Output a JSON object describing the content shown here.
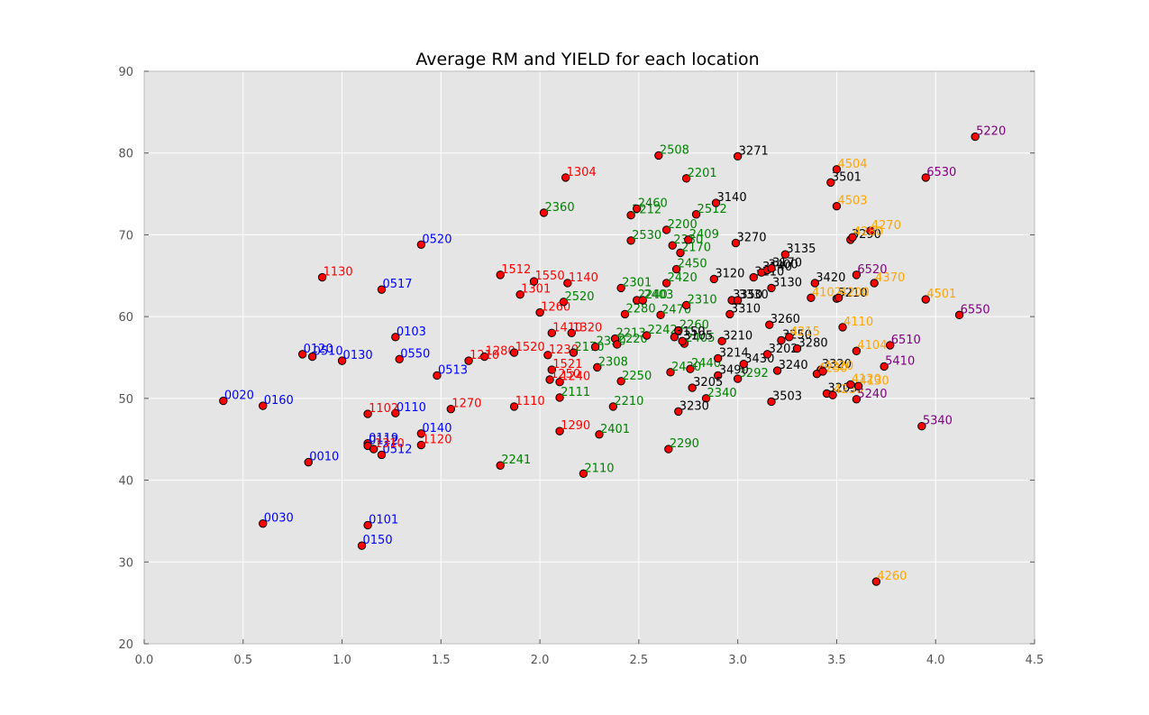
{
  "chart_data": {
    "type": "scatter",
    "title": "Average RM and YIELD for each location",
    "xlabel": "",
    "ylabel": "",
    "xlim": [
      0.0,
      4.5
    ],
    "ylim": [
      20,
      90
    ],
    "x_ticks": [
      "0.0",
      "0.5",
      "1.0",
      "1.5",
      "2.0",
      "2.5",
      "3.0",
      "3.5",
      "4.0",
      "4.5"
    ],
    "y_ticks": [
      "20",
      "30",
      "40",
      "50",
      "60",
      "70",
      "80",
      "90"
    ],
    "grid": true,
    "colors": {
      "background": "#e5e5e5",
      "grid": "#ffffff",
      "marker_fill": "#ff0000",
      "marker_edge": "#000000",
      "group_0": "#0000ff",
      "group_1": "#ff0000",
      "group_2": "#008000",
      "group_3": "#000000",
      "group_4": "#ffa500",
      "group_5": "#800080"
    },
    "points": [
      {
        "label": "0020",
        "x": 0.4,
        "y": 49.7,
        "group": 0
      },
      {
        "label": "0160",
        "x": 0.6,
        "y": 49.1,
        "group": 0
      },
      {
        "label": "0030",
        "x": 0.6,
        "y": 34.7,
        "group": 0
      },
      {
        "label": "0120",
        "x": 0.8,
        "y": 55.4,
        "group": 0
      },
      {
        "label": "0510",
        "x": 0.85,
        "y": 55.1,
        "group": 0
      },
      {
        "label": "0010",
        "x": 0.83,
        "y": 42.2,
        "group": 0
      },
      {
        "label": "0130",
        "x": 1.0,
        "y": 54.6,
        "group": 0
      },
      {
        "label": "0150",
        "x": 1.1,
        "y": 32.0,
        "group": 0
      },
      {
        "label": "0101",
        "x": 1.13,
        "y": 34.5,
        "group": 0
      },
      {
        "label": "0119",
        "x": 1.13,
        "y": 44.5,
        "group": 0
      },
      {
        "label": "0112",
        "x": 1.13,
        "y": 44.2,
        "group": 0
      },
      {
        "label": "0512",
        "x": 1.2,
        "y": 43.1,
        "group": 0
      },
      {
        "label": "0517",
        "x": 1.2,
        "y": 63.3,
        "group": 0
      },
      {
        "label": "0103",
        "x": 1.27,
        "y": 57.5,
        "group": 0
      },
      {
        "label": "0110",
        "x": 1.27,
        "y": 48.2,
        "group": 0
      },
      {
        "label": "0550",
        "x": 1.29,
        "y": 54.8,
        "group": 0
      },
      {
        "label": "0520",
        "x": 1.4,
        "y": 68.8,
        "group": 0
      },
      {
        "label": "0140",
        "x": 1.4,
        "y": 45.7,
        "group": 0
      },
      {
        "label": "0513",
        "x": 1.48,
        "y": 52.8,
        "group": 0
      },
      {
        "label": "1130",
        "x": 0.9,
        "y": 64.8,
        "group": 1
      },
      {
        "label": "1102",
        "x": 1.13,
        "y": 48.1,
        "group": 1
      },
      {
        "label": "1310",
        "x": 1.16,
        "y": 43.8,
        "group": 1
      },
      {
        "label": "1120",
        "x": 1.4,
        "y": 44.3,
        "group": 1
      },
      {
        "label": "1270",
        "x": 1.55,
        "y": 48.7,
        "group": 1
      },
      {
        "label": "1210",
        "x": 1.64,
        "y": 54.6,
        "group": 1
      },
      {
        "label": "1280",
        "x": 1.72,
        "y": 55.1,
        "group": 1
      },
      {
        "label": "1512",
        "x": 1.8,
        "y": 65.1,
        "group": 1
      },
      {
        "label": "1520",
        "x": 1.87,
        "y": 55.6,
        "group": 1
      },
      {
        "label": "1110",
        "x": 1.87,
        "y": 49.0,
        "group": 1
      },
      {
        "label": "1301",
        "x": 1.9,
        "y": 62.7,
        "group": 1
      },
      {
        "label": "1550",
        "x": 1.97,
        "y": 64.3,
        "group": 1
      },
      {
        "label": "1260",
        "x": 2.0,
        "y": 60.5,
        "group": 1
      },
      {
        "label": "1410",
        "x": 2.06,
        "y": 58.0,
        "group": 1
      },
      {
        "label": "1230",
        "x": 2.04,
        "y": 55.3,
        "group": 1
      },
      {
        "label": "1521",
        "x": 2.06,
        "y": 53.5,
        "group": 1
      },
      {
        "label": "1250",
        "x": 2.05,
        "y": 52.3,
        "group": 1
      },
      {
        "label": "1240",
        "x": 2.1,
        "y": 52.0,
        "group": 1
      },
      {
        "label": "1290",
        "x": 2.1,
        "y": 46.0,
        "group": 1
      },
      {
        "label": "1304",
        "x": 2.13,
        "y": 77.0,
        "group": 1
      },
      {
        "label": "1140",
        "x": 2.14,
        "y": 64.1,
        "group": 1
      },
      {
        "label": "1320",
        "x": 2.16,
        "y": 58.0,
        "group": 1
      },
      {
        "label": "2360",
        "x": 2.02,
        "y": 72.7,
        "group": 2
      },
      {
        "label": "2520",
        "x": 2.12,
        "y": 61.8,
        "group": 2
      },
      {
        "label": "2170",
        "x": 2.17,
        "y": 55.6,
        "group": 2
      },
      {
        "label": "2111",
        "x": 2.1,
        "y": 50.1,
        "group": 2
      },
      {
        "label": "2241",
        "x": 1.8,
        "y": 41.8,
        "group": 2
      },
      {
        "label": "2110",
        "x": 2.22,
        "y": 40.8,
        "group": 2
      },
      {
        "label": "2330",
        "x": 2.28,
        "y": 56.3,
        "group": 2
      },
      {
        "label": "2308",
        "x": 2.29,
        "y": 53.8,
        "group": 2
      },
      {
        "label": "2401",
        "x": 2.3,
        "y": 45.6,
        "group": 2
      },
      {
        "label": "2213",
        "x": 2.38,
        "y": 57.3,
        "group": 2
      },
      {
        "label": "2220",
        "x": 2.39,
        "y": 56.6,
        "group": 2
      },
      {
        "label": "2210",
        "x": 2.37,
        "y": 49.0,
        "group": 2
      },
      {
        "label": "2250",
        "x": 2.41,
        "y": 52.1,
        "group": 2
      },
      {
        "label": "2301",
        "x": 2.41,
        "y": 63.5,
        "group": 2
      },
      {
        "label": "2280",
        "x": 2.43,
        "y": 60.3,
        "group": 2
      },
      {
        "label": "2212",
        "x": 2.46,
        "y": 72.4,
        "group": 2
      },
      {
        "label": "2460",
        "x": 2.49,
        "y": 73.2,
        "group": 2
      },
      {
        "label": "2530",
        "x": 2.46,
        "y": 69.3,
        "group": 2
      },
      {
        "label": "2240",
        "x": 2.49,
        "y": 62.0,
        "group": 2
      },
      {
        "label": "2403",
        "x": 2.52,
        "y": 62.0,
        "group": 2
      },
      {
        "label": "2242",
        "x": 2.54,
        "y": 57.7,
        "group": 2
      },
      {
        "label": "2508",
        "x": 2.6,
        "y": 79.7,
        "group": 2
      },
      {
        "label": "2470",
        "x": 2.61,
        "y": 60.2,
        "group": 2
      },
      {
        "label": "2200",
        "x": 2.64,
        "y": 70.6,
        "group": 2
      },
      {
        "label": "2420",
        "x": 2.64,
        "y": 64.1,
        "group": 2
      },
      {
        "label": "2330",
        "x": 2.67,
        "y": 68.7,
        "group": 2
      },
      {
        "label": "2450",
        "x": 2.69,
        "y": 65.8,
        "group": 2
      },
      {
        "label": "2260",
        "x": 2.7,
        "y": 58.3,
        "group": 2
      },
      {
        "label": "2405",
        "x": 2.73,
        "y": 56.7,
        "group": 2
      },
      {
        "label": "2430",
        "x": 2.66,
        "y": 53.2,
        "group": 2
      },
      {
        "label": "2290",
        "x": 2.65,
        "y": 43.8,
        "group": 2
      },
      {
        "label": "2170",
        "x": 2.71,
        "y": 67.8,
        "group": 2
      },
      {
        "label": "2409",
        "x": 2.75,
        "y": 69.4,
        "group": 2
      },
      {
        "label": "2201",
        "x": 2.74,
        "y": 76.9,
        "group": 2
      },
      {
        "label": "2310",
        "x": 2.74,
        "y": 61.4,
        "group": 2
      },
      {
        "label": "2440",
        "x": 2.76,
        "y": 53.6,
        "group": 2
      },
      {
        "label": "2512",
        "x": 2.79,
        "y": 72.5,
        "group": 2
      },
      {
        "label": "2340",
        "x": 2.84,
        "y": 50.0,
        "group": 2
      },
      {
        "label": "3292",
        "x": 3.0,
        "y": 52.4,
        "group": 2
      },
      {
        "label": "3271",
        "x": 3.0,
        "y": 79.6,
        "group": 3
      },
      {
        "label": "3140",
        "x": 2.89,
        "y": 73.9,
        "group": 3
      },
      {
        "label": "3270",
        "x": 2.99,
        "y": 69.0,
        "group": 3
      },
      {
        "label": "3120",
        "x": 2.88,
        "y": 64.6,
        "group": 3
      },
      {
        "label": "3150",
        "x": 2.68,
        "y": 57.5,
        "group": 3
      },
      {
        "label": "3105",
        "x": 2.72,
        "y": 57.0,
        "group": 3
      },
      {
        "label": "3210",
        "x": 2.92,
        "y": 57.0,
        "group": 3
      },
      {
        "label": "3214",
        "x": 2.9,
        "y": 54.9,
        "group": 3
      },
      {
        "label": "3490",
        "x": 2.9,
        "y": 52.8,
        "group": 3
      },
      {
        "label": "3205",
        "x": 2.77,
        "y": 51.3,
        "group": 3
      },
      {
        "label": "3230",
        "x": 2.7,
        "y": 48.4,
        "group": 3
      },
      {
        "label": "3350",
        "x": 2.97,
        "y": 62.0,
        "group": 3
      },
      {
        "label": "3330",
        "x": 3.0,
        "y": 62.0,
        "group": 3
      },
      {
        "label": "3310",
        "x": 2.96,
        "y": 60.3,
        "group": 3
      },
      {
        "label": "3430",
        "x": 3.03,
        "y": 54.2,
        "group": 3
      },
      {
        "label": "3110",
        "x": 3.08,
        "y": 64.8,
        "group": 3
      },
      {
        "label": "3140",
        "x": 3.12,
        "y": 65.4,
        "group": 3
      },
      {
        "label": "3400",
        "x": 3.15,
        "y": 65.7,
        "group": 3
      },
      {
        "label": "3170",
        "x": 3.17,
        "y": 65.9,
        "group": 3
      },
      {
        "label": "3130",
        "x": 3.17,
        "y": 63.5,
        "group": 3
      },
      {
        "label": "3135",
        "x": 3.24,
        "y": 67.6,
        "group": 3
      },
      {
        "label": "3260",
        "x": 3.16,
        "y": 59.0,
        "group": 3
      },
      {
        "label": "3202",
        "x": 3.15,
        "y": 55.4,
        "group": 3
      },
      {
        "label": "3240",
        "x": 3.2,
        "y": 53.4,
        "group": 3
      },
      {
        "label": "3503",
        "x": 3.17,
        "y": 49.6,
        "group": 3
      },
      {
        "label": "3250",
        "x": 3.22,
        "y": 57.1,
        "group": 3
      },
      {
        "label": "3280",
        "x": 3.3,
        "y": 56.1,
        "group": 3
      },
      {
        "label": "3420",
        "x": 3.39,
        "y": 64.1,
        "group": 3
      },
      {
        "label": "3320",
        "x": 3.42,
        "y": 53.5,
        "group": 3
      },
      {
        "label": "3203",
        "x": 3.45,
        "y": 50.6,
        "group": 3
      },
      {
        "label": "3501",
        "x": 3.47,
        "y": 76.4,
        "group": 3
      },
      {
        "label": "3290",
        "x": 3.57,
        "y": 69.4,
        "group": 3
      },
      {
        "label": "5210",
        "x": 3.5,
        "y": 62.2,
        "group": 3
      },
      {
        "label": "4504",
        "x": 3.5,
        "y": 78.0,
        "group": 4
      },
      {
        "label": "4503",
        "x": 3.5,
        "y": 73.5,
        "group": 4
      },
      {
        "label": "4270",
        "x": 3.67,
        "y": 70.5,
        "group": 4
      },
      {
        "label": "4280",
        "x": 3.58,
        "y": 69.7,
        "group": 4
      },
      {
        "label": "4370",
        "x": 3.69,
        "y": 64.1,
        "group": 4
      },
      {
        "label": "4102",
        "x": 3.37,
        "y": 62.3,
        "group": 4
      },
      {
        "label": "4200",
        "x": 3.51,
        "y": 62.3,
        "group": 4
      },
      {
        "label": "4110",
        "x": 3.53,
        "y": 58.7,
        "group": 4
      },
      {
        "label": "4215",
        "x": 3.26,
        "y": 57.5,
        "group": 4
      },
      {
        "label": "4104",
        "x": 3.6,
        "y": 55.8,
        "group": 4
      },
      {
        "label": "4230",
        "x": 3.4,
        "y": 53.0,
        "group": 4
      },
      {
        "label": "4220",
        "x": 3.43,
        "y": 53.3,
        "group": 4
      },
      {
        "label": "4230",
        "x": 3.48,
        "y": 50.4,
        "group": 4
      },
      {
        "label": "4120",
        "x": 3.57,
        "y": 51.7,
        "group": 4
      },
      {
        "label": "4130",
        "x": 3.61,
        "y": 51.5,
        "group": 4
      },
      {
        "label": "4501",
        "x": 3.95,
        "y": 62.1,
        "group": 4
      },
      {
        "label": "4260",
        "x": 3.7,
        "y": 27.6,
        "group": 4
      },
      {
        "label": "5220",
        "x": 4.2,
        "y": 82.0,
        "group": 5
      },
      {
        "label": "6530",
        "x": 3.95,
        "y": 77.0,
        "group": 5
      },
      {
        "label": "6520",
        "x": 3.6,
        "y": 65.1,
        "group": 5
      },
      {
        "label": "6550",
        "x": 4.12,
        "y": 60.2,
        "group": 5
      },
      {
        "label": "6510",
        "x": 3.77,
        "y": 56.5,
        "group": 5
      },
      {
        "label": "5410",
        "x": 3.74,
        "y": 53.9,
        "group": 5
      },
      {
        "label": "5240",
        "x": 3.6,
        "y": 49.9,
        "group": 5
      },
      {
        "label": "5340",
        "x": 3.93,
        "y": 46.6,
        "group": 5
      }
    ]
  }
}
